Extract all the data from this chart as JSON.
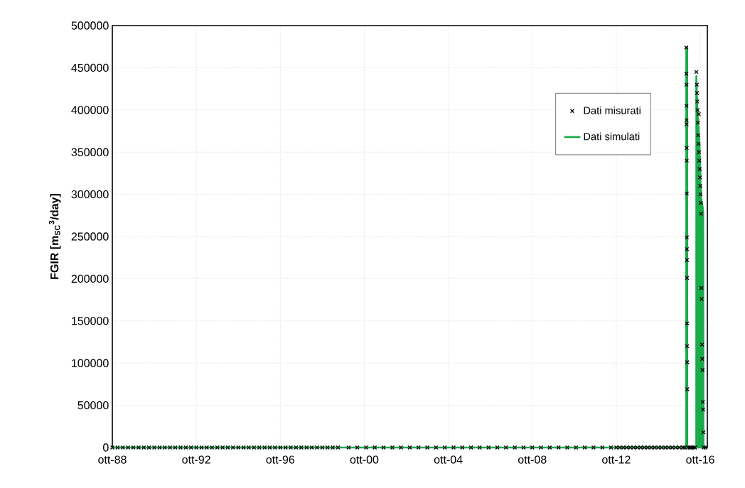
{
  "chart_data": {
    "type": "line",
    "ylabel": "FGIR [m$_{SC}$$^{3}$/day]",
    "xlim": [
      "1988-10",
      "2017-02"
    ],
    "xticks": [
      {
        "value": "1988-10",
        "label": "ott-88"
      },
      {
        "value": "1992-10",
        "label": "ott-92"
      },
      {
        "value": "1996-10",
        "label": "ott-96"
      },
      {
        "value": "2000-10",
        "label": "ott-00"
      },
      {
        "value": "2004-10",
        "label": "ott-04"
      },
      {
        "value": "2008-10",
        "label": "ott-08"
      },
      {
        "value": "2012-10",
        "label": "ott-12"
      },
      {
        "value": "2016-10",
        "label": "ott-16"
      }
    ],
    "ylim": [
      0,
      500000
    ],
    "yticks": [
      0,
      50000,
      100000,
      150000,
      200000,
      250000,
      300000,
      350000,
      400000,
      450000,
      500000
    ],
    "grid": true,
    "legend": "top right",
    "series": [
      {
        "name": "Dati misurati",
        "type": "scatter",
        "marker": "cross",
        "color": "#000000",
        "x": [
          "1988-10",
          "1989-01",
          "1989-04",
          "1989-07",
          "1989-10",
          "1990-01",
          "1990-04",
          "1990-07",
          "1990-10",
          "1991-01",
          "1991-04",
          "1991-07",
          "1991-10",
          "1992-01",
          "1992-04",
          "1992-07",
          "1992-10",
          "1993-01",
          "1993-04",
          "1993-07",
          "1993-10",
          "1994-01",
          "1994-04",
          "1994-07",
          "1994-10",
          "1995-01",
          "1995-04",
          "1995-07",
          "1995-10",
          "1996-01",
          "1996-04",
          "1996-07",
          "1996-10",
          "1997-01",
          "1997-04",
          "1997-07",
          "1997-10",
          "1998-01",
          "1998-04",
          "1998-07",
          "1998-10",
          "1999-01",
          "1999-04",
          "1999-07",
          "2000-01",
          "2000-06",
          "2000-11",
          "2001-04",
          "2001-09",
          "2002-02",
          "2002-07",
          "2002-12",
          "2003-05",
          "2003-10",
          "2004-03",
          "2004-08",
          "2005-01",
          "2005-06",
          "2005-11",
          "2006-04",
          "2006-09",
          "2007-02",
          "2007-07",
          "2007-12",
          "2008-05",
          "2008-10",
          "2009-03",
          "2009-08",
          "2010-01",
          "2010-06",
          "2010-11",
          "2011-04",
          "2011-09",
          "2012-02",
          "2012-07",
          "2012-10",
          "2012-12",
          "2013-02",
          "2013-04",
          "2013-06",
          "2013-08",
          "2013-10",
          "2013-12",
          "2014-02",
          "2014-04",
          "2014-06",
          "2014-08",
          "2014-10",
          "2014-12",
          "2015-02",
          "2015-04",
          "2015-06",
          "2015-08",
          "2015-10",
          "2015-12",
          "2016-01",
          "2016-02-01",
          "2016-02-02",
          "2016-02-03",
          "2016-02-04",
          "2016-02-05",
          "2016-02-06",
          "2016-02-07",
          "2016-02-08",
          "2016-02-09",
          "2016-02-10",
          "2016-02-11",
          "2016-02-12",
          "2016-02-13",
          "2016-02-14",
          "2016-02-15",
          "2016-02-16",
          "2016-02-17",
          "2016-03",
          "2016-04",
          "2016-05",
          "2016-06",
          "2016-07",
          "2016-07-25",
          "2016-08-01",
          "2016-08-05",
          "2016-08-10",
          "2016-08-15",
          "2016-08-20",
          "2016-08-25",
          "2016-09-01",
          "2016-09-05",
          "2016-09-10",
          "2016-09-15",
          "2016-09-20",
          "2016-09-25",
          "2016-10-01",
          "2016-10-05",
          "2016-10-10",
          "2016-10-15",
          "2016-10-20",
          "2016-10-25",
          "2016-11-01",
          "2016-11-05",
          "2016-11-10",
          "2016-11-15",
          "2016-11-20",
          "2016-11-25",
          "2016-12",
          "2017-01"
        ],
        "values": [
          0,
          0,
          0,
          0,
          0,
          0,
          0,
          0,
          0,
          0,
          0,
          0,
          0,
          0,
          0,
          0,
          0,
          0,
          0,
          0,
          0,
          0,
          0,
          0,
          0,
          0,
          0,
          0,
          0,
          0,
          0,
          0,
          0,
          0,
          0,
          0,
          0,
          0,
          0,
          0,
          0,
          0,
          0,
          0,
          0,
          0,
          0,
          0,
          0,
          0,
          0,
          0,
          0,
          0,
          0,
          0,
          0,
          0,
          0,
          0,
          0,
          0,
          0,
          0,
          0,
          0,
          0,
          0,
          0,
          0,
          0,
          0,
          0,
          0,
          0,
          0,
          0,
          0,
          0,
          0,
          0,
          0,
          0,
          0,
          0,
          0,
          0,
          0,
          0,
          0,
          0,
          0,
          0,
          0,
          0,
          0,
          474000,
          443000,
          430000,
          405000,
          388000,
          383000,
          355000,
          340000,
          301000,
          249000,
          235000,
          222000,
          201000,
          147000,
          120000,
          101000,
          69000,
          0,
          0,
          0,
          0,
          0,
          445000,
          430000,
          420000,
          410000,
          400000,
          385000,
          370000,
          360000,
          395000,
          350000,
          340000,
          330000,
          320000,
          310000,
          300000,
          290000,
          277000,
          189000,
          176000,
          122000,
          105000,
          92000,
          54000,
          45000,
          18000,
          0,
          0
        ]
      },
      {
        "name": "Dati simulati",
        "marker": "none",
        "line_style": "solid",
        "color": "#1aab4b",
        "x": [
          "1988-10",
          "2016-01-31",
          "2016-02-01",
          "2016-02-16",
          "2016-02-17",
          "2016-07-24",
          "2016-07-25",
          "2016-07-28",
          "2016-08-01",
          "2016-08-05",
          "2016-08-09",
          "2016-08-13",
          "2016-08-17",
          "2016-08-21",
          "2016-08-25",
          "2016-08-29",
          "2016-09-02",
          "2016-09-06",
          "2016-09-10",
          "2016-09-14",
          "2016-09-18",
          "2016-09-22",
          "2016-09-26",
          "2016-09-30",
          "2016-10-04",
          "2016-10-08",
          "2016-10-12",
          "2016-10-16",
          "2016-10-20",
          "2016-10-24",
          "2016-10-28",
          "2016-11-01",
          "2016-11-05",
          "2016-11-09",
          "2016-11-13",
          "2016-11-17",
          "2016-11-21",
          "2016-11-25",
          "2017-01"
        ],
        "values": [
          0,
          0,
          474000,
          474000,
          0,
          0,
          440000,
          0,
          430000,
          0,
          415000,
          0,
          400000,
          0,
          390000,
          0,
          380000,
          0,
          370000,
          0,
          360000,
          0,
          345000,
          0,
          330000,
          0,
          310000,
          0,
          295000,
          0,
          290000,
          0,
          290000,
          0,
          285000,
          0,
          280000,
          0,
          0
        ]
      }
    ]
  }
}
